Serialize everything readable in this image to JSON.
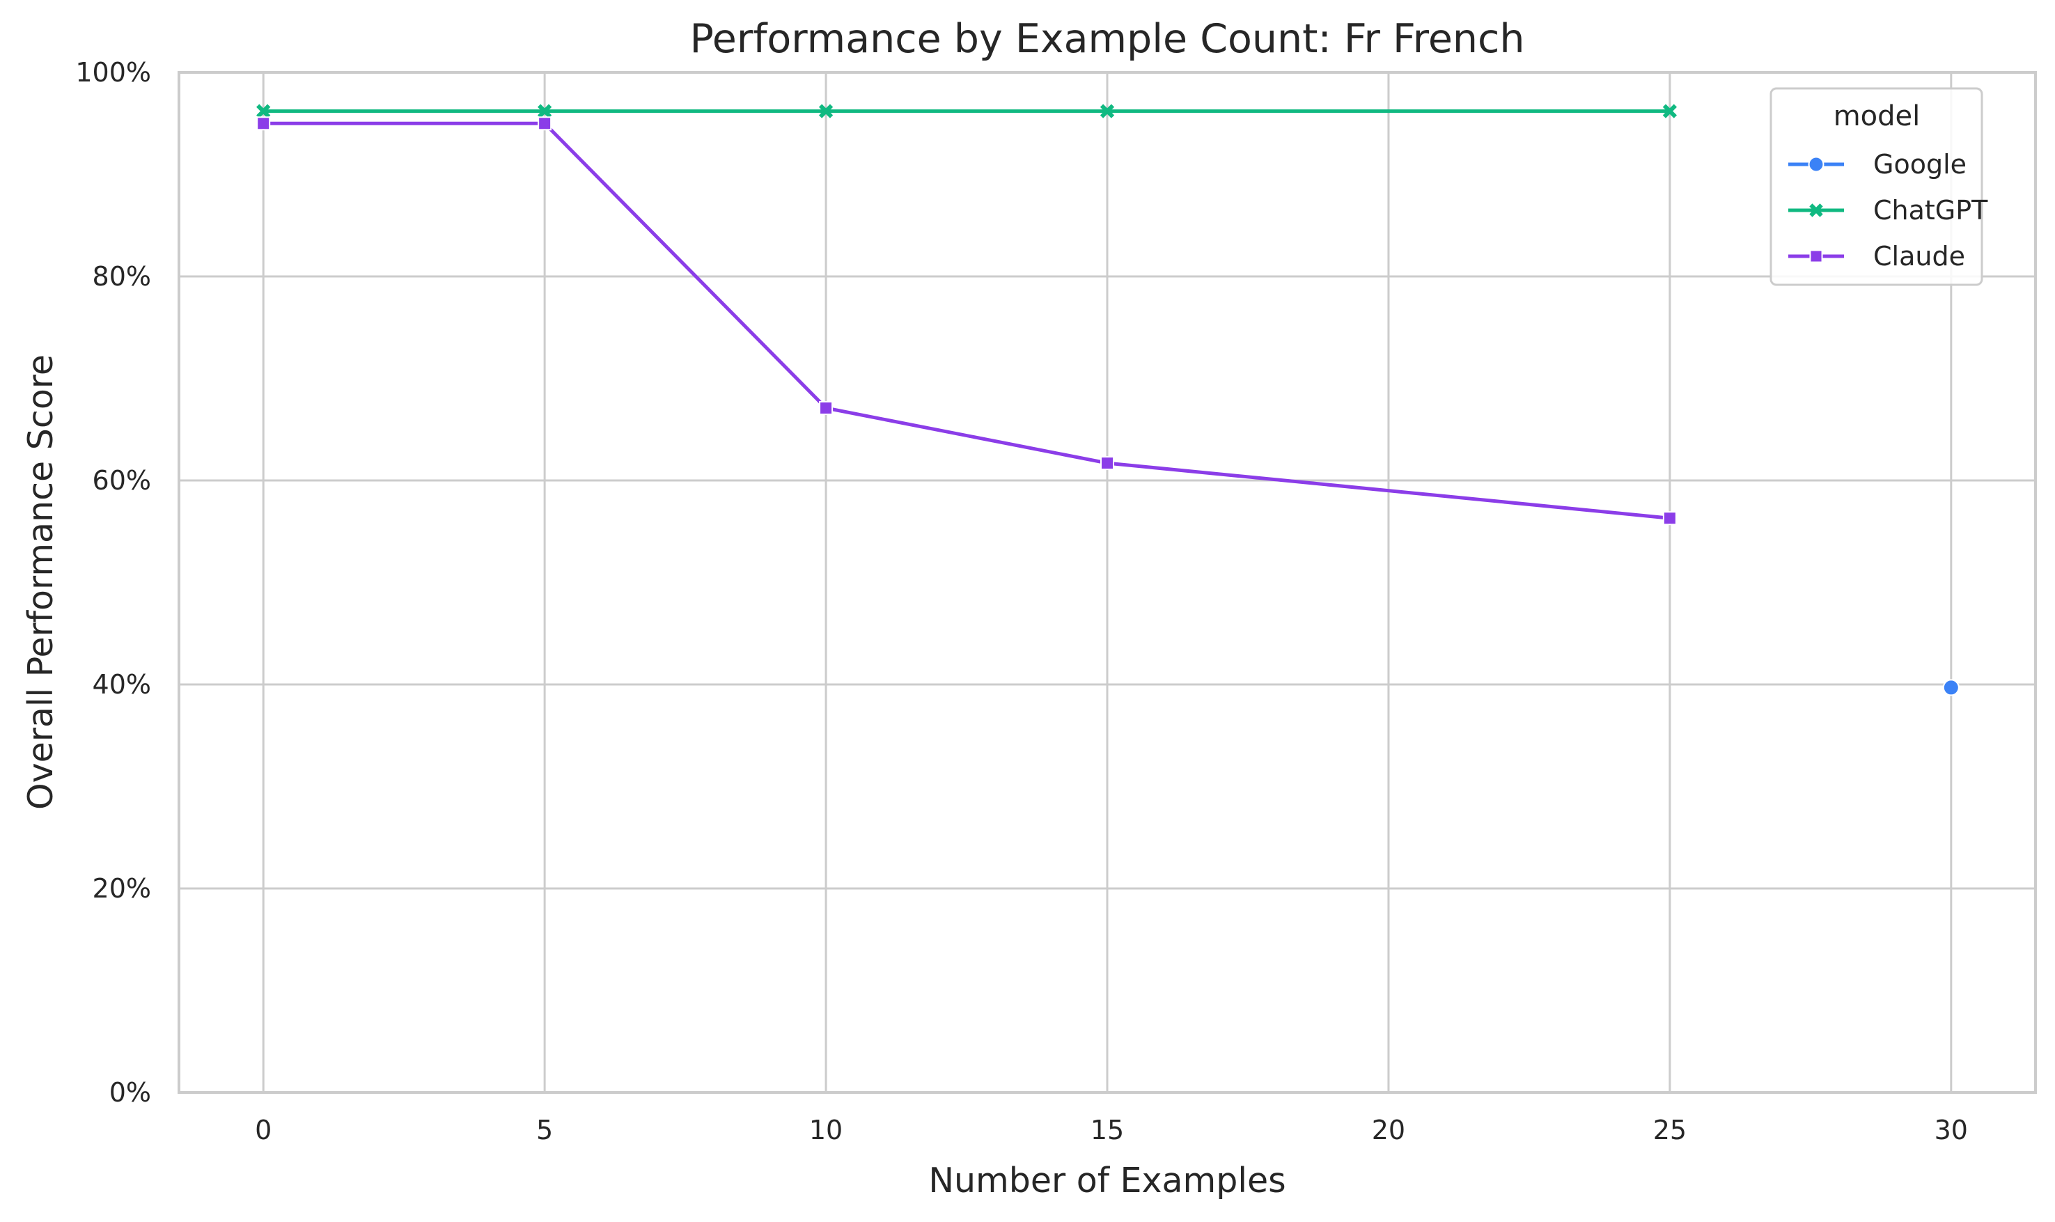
{
  "chart_data": {
    "type": "line",
    "title": "Performance by Example Count: Fr French",
    "xlabel": "Number of Examples",
    "ylabel": "Overall Performance Score",
    "xlim": [
      -1.5,
      31.5
    ],
    "ylim": [
      0,
      1
    ],
    "x_ticks": [
      0,
      5,
      10,
      15,
      20,
      25,
      30
    ],
    "x_tick_labels": [
      "0",
      "5",
      "10",
      "15",
      "20",
      "25",
      "30"
    ],
    "y_ticks": [
      0,
      0.2,
      0.4,
      0.6,
      0.8,
      1.0
    ],
    "y_tick_labels": [
      "0%",
      "20%",
      "40%",
      "60%",
      "80%",
      "100%"
    ],
    "grid": true,
    "legend": {
      "title": "model",
      "placement": "top-right"
    },
    "series": [
      {
        "name": "Google",
        "color": "#3b82f6",
        "marker": "circle",
        "points": [
          {
            "x": 30,
            "y": 0.397
          }
        ]
      },
      {
        "name": "ChatGPT",
        "color": "#10b981",
        "marker": "x",
        "points": [
          {
            "x": 0,
            "y": 0.962
          },
          {
            "x": 5,
            "y": 0.962
          },
          {
            "x": 10,
            "y": 0.962
          },
          {
            "x": 15,
            "y": 0.962
          },
          {
            "x": 25,
            "y": 0.962
          }
        ]
      },
      {
        "name": "Claude",
        "color": "#8b3de8",
        "marker": "square",
        "points": [
          {
            "x": 0,
            "y": 0.95
          },
          {
            "x": 5,
            "y": 0.95
          },
          {
            "x": 10,
            "y": 0.671
          },
          {
            "x": 15,
            "y": 0.617
          },
          {
            "x": 25,
            "y": 0.563
          }
        ]
      }
    ]
  }
}
